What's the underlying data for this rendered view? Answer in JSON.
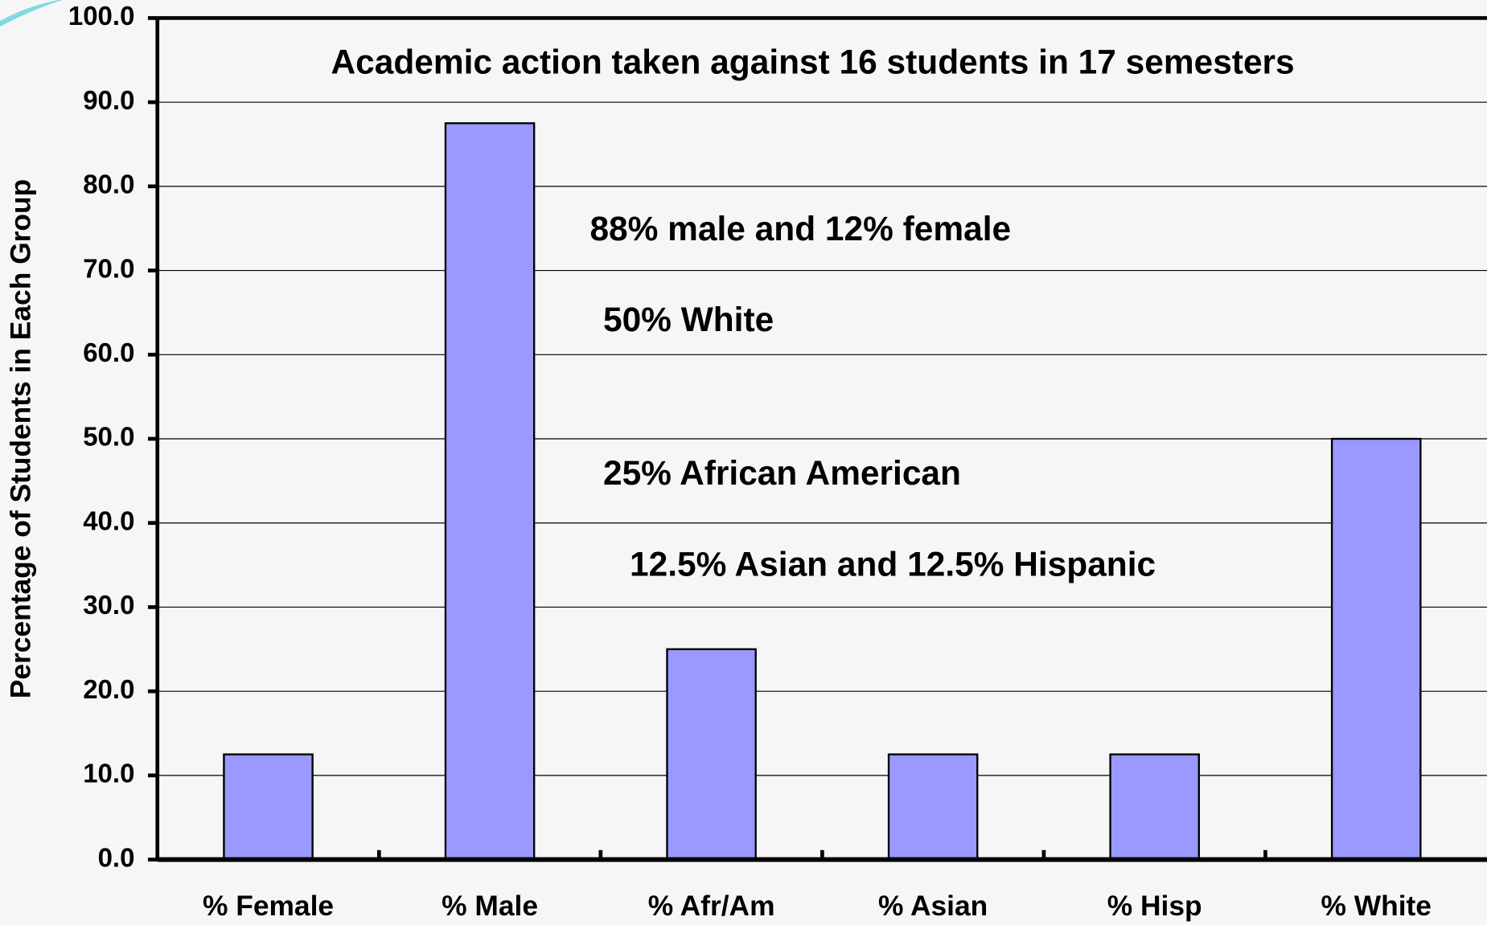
{
  "chart_data": {
    "type": "bar",
    "title": "Academic action taken against 16 students in 17 semesters",
    "y_label": "Percentage of Students in Each Group",
    "annotations": [
      "88% male and 12% female",
      "50% White",
      "25% African American",
      "12.5% Asian and 12.5% Hispanic"
    ],
    "categories": [
      "% Female",
      "% Male",
      "% Afr/Am",
      "% Asian",
      "% Hisp",
      "% White"
    ],
    "values": [
      12.5,
      87.5,
      25,
      12.5,
      12.5,
      50
    ],
    "color": "#9999ff",
    "ylim": [
      0,
      100
    ],
    "yticks": [
      {
        "value": 0,
        "label": "0.0"
      },
      {
        "value": 10,
        "label": "10.0"
      },
      {
        "value": 20,
        "label": "20.0"
      },
      {
        "value": 30,
        "label": "30.0"
      },
      {
        "value": 40,
        "label": "40.0"
      },
      {
        "value": 50,
        "label": "50.0"
      },
      {
        "value": 60,
        "label": "60.0"
      },
      {
        "value": 70,
        "label": "70.0"
      },
      {
        "value": 80,
        "label": "80.0"
      },
      {
        "value": 90,
        "label": "90.0"
      },
      {
        "value": 100,
        "label": "100.0"
      }
    ],
    "grid": true
  }
}
